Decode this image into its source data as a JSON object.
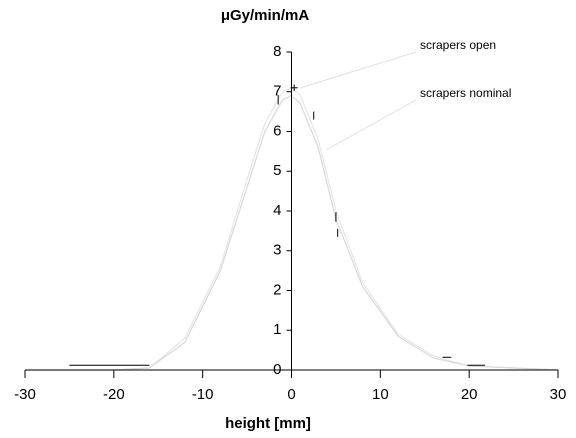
{
  "chart_data": {
    "type": "line",
    "y_label": "μGy/min/mA",
    "x_label": "height [mm]",
    "xlim": [
      -30,
      30
    ],
    "xticks": [
      -30,
      -20,
      -10,
      0,
      10,
      20,
      30
    ],
    "ylim": [
      0,
      8
    ],
    "yticks": [
      0,
      1,
      2,
      3,
      4,
      5,
      6,
      7,
      8
    ],
    "x": [
      -30,
      -20,
      -16,
      -12,
      -8,
      -5,
      -3,
      -1,
      0,
      1,
      3,
      5,
      8,
      12,
      16,
      20,
      30
    ],
    "series": [
      {
        "name": "scrapers open",
        "color": "#e6e6e6",
        "values": [
          0,
          0,
          0.05,
          0.8,
          2.6,
          4.8,
          6.2,
          7.0,
          7.1,
          6.9,
          5.8,
          4.0,
          2.2,
          0.9,
          0.35,
          0.1,
          0
        ]
      },
      {
        "name": "scrapers nominal",
        "color": "#d9d9d9",
        "values": [
          0,
          0,
          0.05,
          0.7,
          2.5,
          4.6,
          6.0,
          6.8,
          6.9,
          6.7,
          5.6,
          3.8,
          2.1,
          0.85,
          0.3,
          0.1,
          0
        ]
      }
    ],
    "points": {
      "x": [
        -20.5,
        -1.5,
        0.3,
        2.5,
        5,
        5.2,
        17.5,
        20.8
      ],
      "values": [
        0.12,
        6.8,
        7.1,
        6.4,
        3.85,
        3.45,
        0.32,
        0.12
      ],
      "xerr": [
        4.5,
        0,
        0.4,
        0,
        0,
        0,
        0.5,
        1
      ],
      "yerr": [
        0,
        0.12,
        0.08,
        0.1,
        0.12,
        0.1,
        0,
        0
      ]
    }
  }
}
